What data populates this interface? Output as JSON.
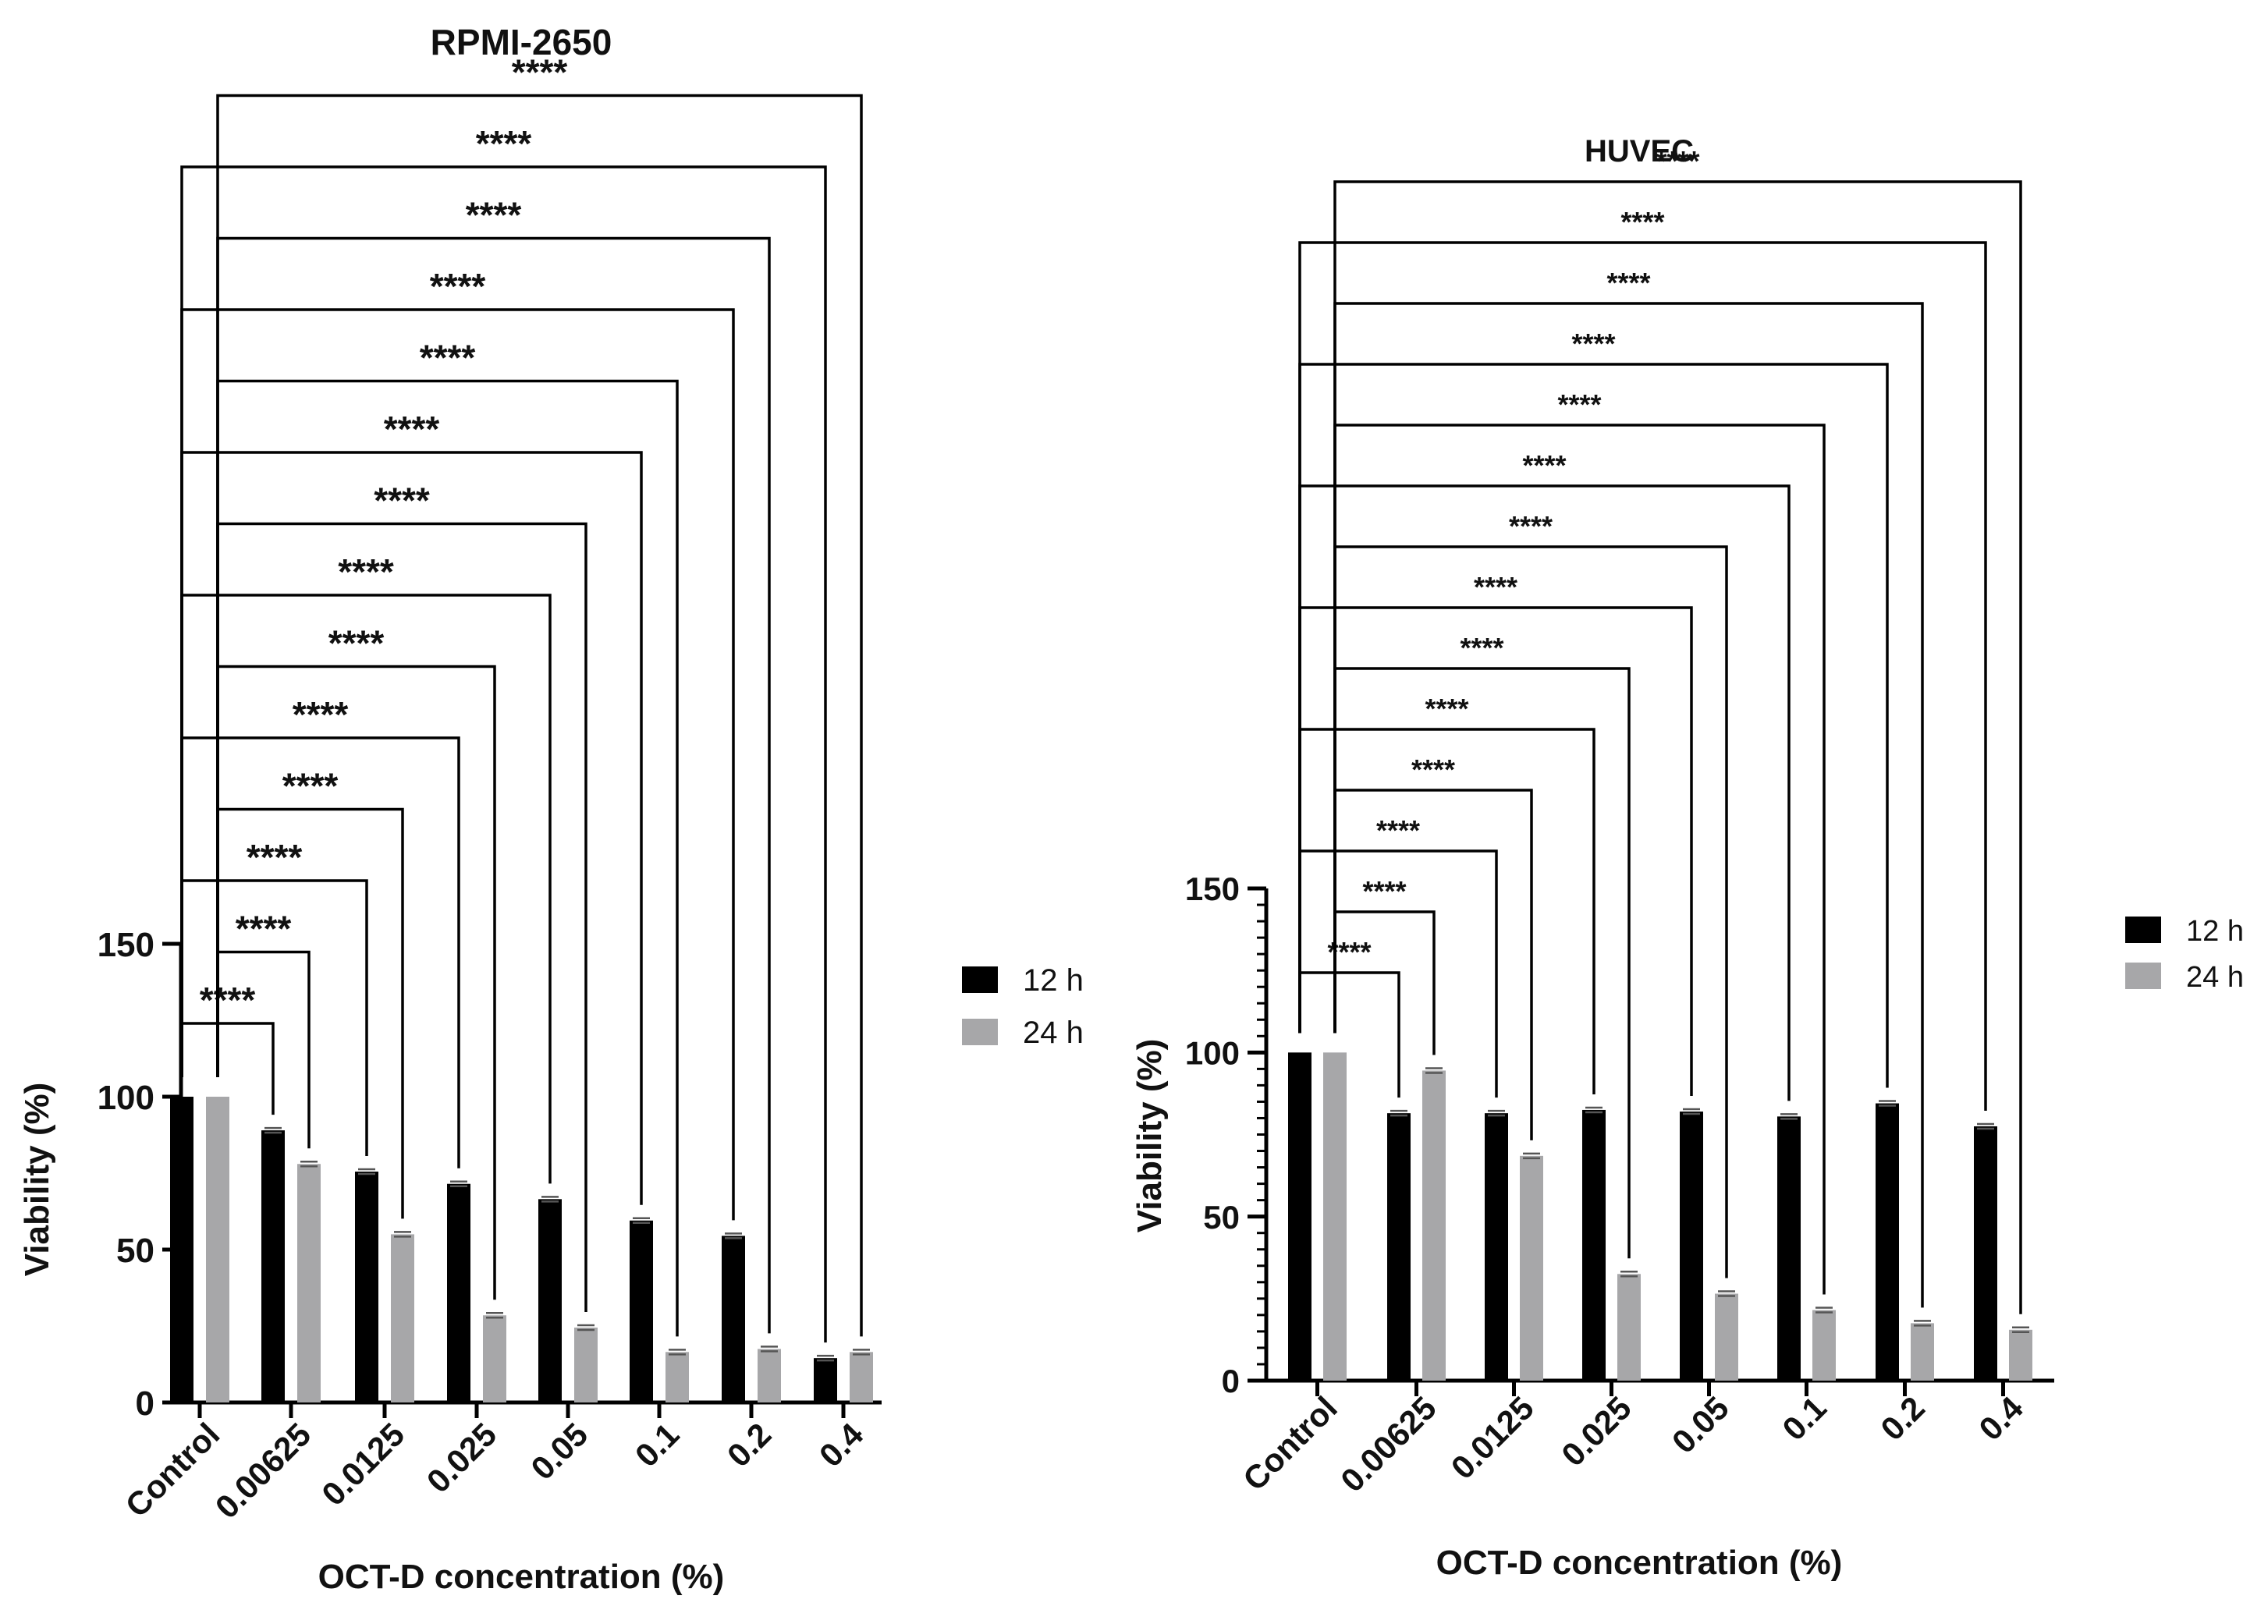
{
  "chart_data": [
    {
      "type": "bar",
      "title": "RPMI-2650",
      "xlabel": "OCT-D concentration (%)",
      "ylabel": "Viability (%)",
      "ylim": [
        0,
        150
      ],
      "yticks": [
        0,
        50,
        100,
        150
      ],
      "categories": [
        "Control",
        "0.00625",
        "0.0125",
        "0.025",
        "0.05",
        "0.1",
        "0.2",
        "0.4"
      ],
      "series": [
        {
          "name": "12 h",
          "color": "#000000",
          "values": [
            100,
            89,
            75.5,
            71.5,
            66.5,
            59.5,
            54.5,
            14.5
          ]
        },
        {
          "name": "24 h",
          "color": "#a7a7a9",
          "values": [
            100,
            78,
            55,
            28.5,
            24.5,
            16.5,
            17.5,
            16.5
          ]
        }
      ],
      "comparisons": [
        {
          "from": {
            "category": 0,
            "series": 0
          },
          "to": {
            "category": 1,
            "series": 0
          },
          "label": "****"
        },
        {
          "from": {
            "category": 0,
            "series": 1
          },
          "to": {
            "category": 1,
            "series": 1
          },
          "label": "****"
        },
        {
          "from": {
            "category": 0,
            "series": 0
          },
          "to": {
            "category": 2,
            "series": 0
          },
          "label": "****"
        },
        {
          "from": {
            "category": 0,
            "series": 1
          },
          "to": {
            "category": 2,
            "series": 1
          },
          "label": "****"
        },
        {
          "from": {
            "category": 0,
            "series": 0
          },
          "to": {
            "category": 3,
            "series": 0
          },
          "label": "****"
        },
        {
          "from": {
            "category": 0,
            "series": 1
          },
          "to": {
            "category": 3,
            "series": 1
          },
          "label": "****"
        },
        {
          "from": {
            "category": 0,
            "series": 0
          },
          "to": {
            "category": 4,
            "series": 0
          },
          "label": "****"
        },
        {
          "from": {
            "category": 0,
            "series": 1
          },
          "to": {
            "category": 4,
            "series": 1
          },
          "label": "****"
        },
        {
          "from": {
            "category": 0,
            "series": 0
          },
          "to": {
            "category": 5,
            "series": 0
          },
          "label": "****"
        },
        {
          "from": {
            "category": 0,
            "series": 1
          },
          "to": {
            "category": 5,
            "series": 1
          },
          "label": "****"
        },
        {
          "from": {
            "category": 0,
            "series": 0
          },
          "to": {
            "category": 6,
            "series": 0
          },
          "label": "****"
        },
        {
          "from": {
            "category": 0,
            "series": 1
          },
          "to": {
            "category": 6,
            "series": 1
          },
          "label": "****"
        },
        {
          "from": {
            "category": 0,
            "series": 0
          },
          "to": {
            "category": 7,
            "series": 0
          },
          "label": "****"
        },
        {
          "from": {
            "category": 0,
            "series": 1
          },
          "to": {
            "category": 7,
            "series": 1
          },
          "label": "****"
        }
      ],
      "legend_position": "right"
    },
    {
      "type": "bar",
      "title": "HUVEC",
      "xlabel": "OCT-D concentration (%)",
      "ylabel": "Viability (%)",
      "ylim": [
        0,
        150
      ],
      "yticks": [
        0,
        50,
        100,
        150
      ],
      "categories": [
        "Control",
        "0.00625",
        "0.0125",
        "0.025",
        "0.05",
        "0.1",
        "0.2",
        "0.4"
      ],
      "series": [
        {
          "name": "12 h",
          "color": "#000000",
          "values": [
            100,
            81.5,
            81.5,
            82.5,
            82,
            80.5,
            84.5,
            77.5
          ]
        },
        {
          "name": "24 h",
          "color": "#a7a7a9",
          "values": [
            100,
            94.5,
            68.5,
            32.5,
            26.5,
            21.5,
            17.5,
            15.5
          ]
        }
      ],
      "comparisons": [
        {
          "from": {
            "category": 0,
            "series": 0
          },
          "to": {
            "category": 1,
            "series": 0
          },
          "label": "****"
        },
        {
          "from": {
            "category": 0,
            "series": 1
          },
          "to": {
            "category": 1,
            "series": 1
          },
          "label": "****"
        },
        {
          "from": {
            "category": 0,
            "series": 0
          },
          "to": {
            "category": 2,
            "series": 0
          },
          "label": "****"
        },
        {
          "from": {
            "category": 0,
            "series": 1
          },
          "to": {
            "category": 2,
            "series": 1
          },
          "label": "****"
        },
        {
          "from": {
            "category": 0,
            "series": 0
          },
          "to": {
            "category": 3,
            "series": 0
          },
          "label": "****"
        },
        {
          "from": {
            "category": 0,
            "series": 1
          },
          "to": {
            "category": 3,
            "series": 1
          },
          "label": "****"
        },
        {
          "from": {
            "category": 0,
            "series": 0
          },
          "to": {
            "category": 4,
            "series": 0
          },
          "label": "****"
        },
        {
          "from": {
            "category": 0,
            "series": 1
          },
          "to": {
            "category": 4,
            "series": 1
          },
          "label": "****"
        },
        {
          "from": {
            "category": 0,
            "series": 0
          },
          "to": {
            "category": 5,
            "series": 0
          },
          "label": "****"
        },
        {
          "from": {
            "category": 0,
            "series": 1
          },
          "to": {
            "category": 5,
            "series": 1
          },
          "label": "****"
        },
        {
          "from": {
            "category": 0,
            "series": 0
          },
          "to": {
            "category": 6,
            "series": 0
          },
          "label": "****"
        },
        {
          "from": {
            "category": 0,
            "series": 1
          },
          "to": {
            "category": 6,
            "series": 1
          },
          "label": "****"
        },
        {
          "from": {
            "category": 0,
            "series": 0
          },
          "to": {
            "category": 7,
            "series": 0
          },
          "label": "****"
        },
        {
          "from": {
            "category": 0,
            "series": 1
          },
          "to": {
            "category": 7,
            "series": 1
          },
          "label": "****"
        }
      ],
      "legend_position": "right"
    }
  ]
}
